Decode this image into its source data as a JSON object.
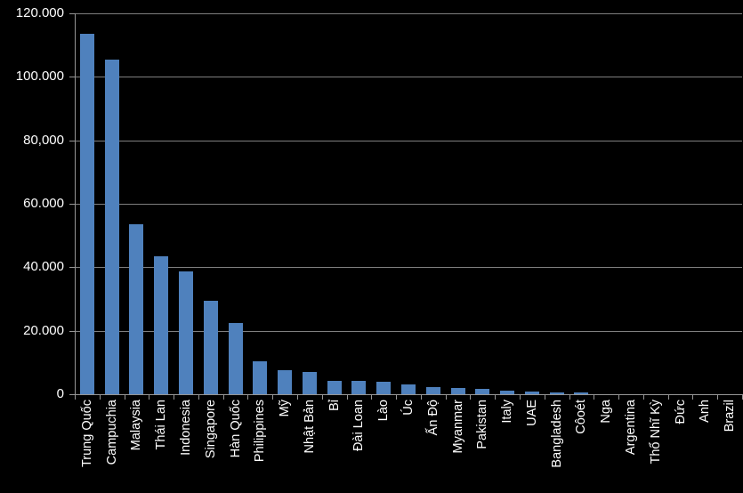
{
  "chart_data": {
    "type": "bar",
    "title": "",
    "xlabel": "",
    "ylabel": "",
    "categories": [
      "Trung Quốc",
      "Campuchia",
      "Malaysia",
      "Thái Lan",
      "Indonesia",
      "Singapore",
      "Hàn Quốc",
      "Philippines",
      "Mỹ",
      "Nhật Bản",
      "Bỉ",
      "Đài Loan",
      "Lào",
      "Úc",
      "Ấn Độ",
      "Myanmar",
      "Pakistan",
      "Italy",
      "UAE",
      "Bangladesh",
      "Côoét",
      "Nga",
      "Argentina",
      "Thổ Nhĩ Kỳ",
      "Đức",
      "Anh",
      "Brazil"
    ],
    "values": [
      113500,
      105500,
      53600,
      43500,
      38700,
      29400,
      22500,
      10400,
      7700,
      6900,
      4200,
      4100,
      3850,
      3200,
      2250,
      2050,
      1700,
      1000,
      800,
      550,
      500,
      0,
      0,
      0,
      0,
      0,
      0
    ],
    "y_tick_labels": [
      "120.000",
      "100.000",
      "80,000",
      "60.000",
      "40.000",
      "20.000",
      "0"
    ],
    "y_tick_values": [
      120000,
      100000,
      80000,
      60000,
      40000,
      20000,
      0
    ],
    "ylim": [
      0,
      120000
    ],
    "grid": true,
    "legend": "none",
    "colors": {
      "bar": "#4F81BD",
      "background": "#000000",
      "text": "#FFFFFF",
      "gridline": "#7F7F7F",
      "axis": "#969696"
    }
  }
}
